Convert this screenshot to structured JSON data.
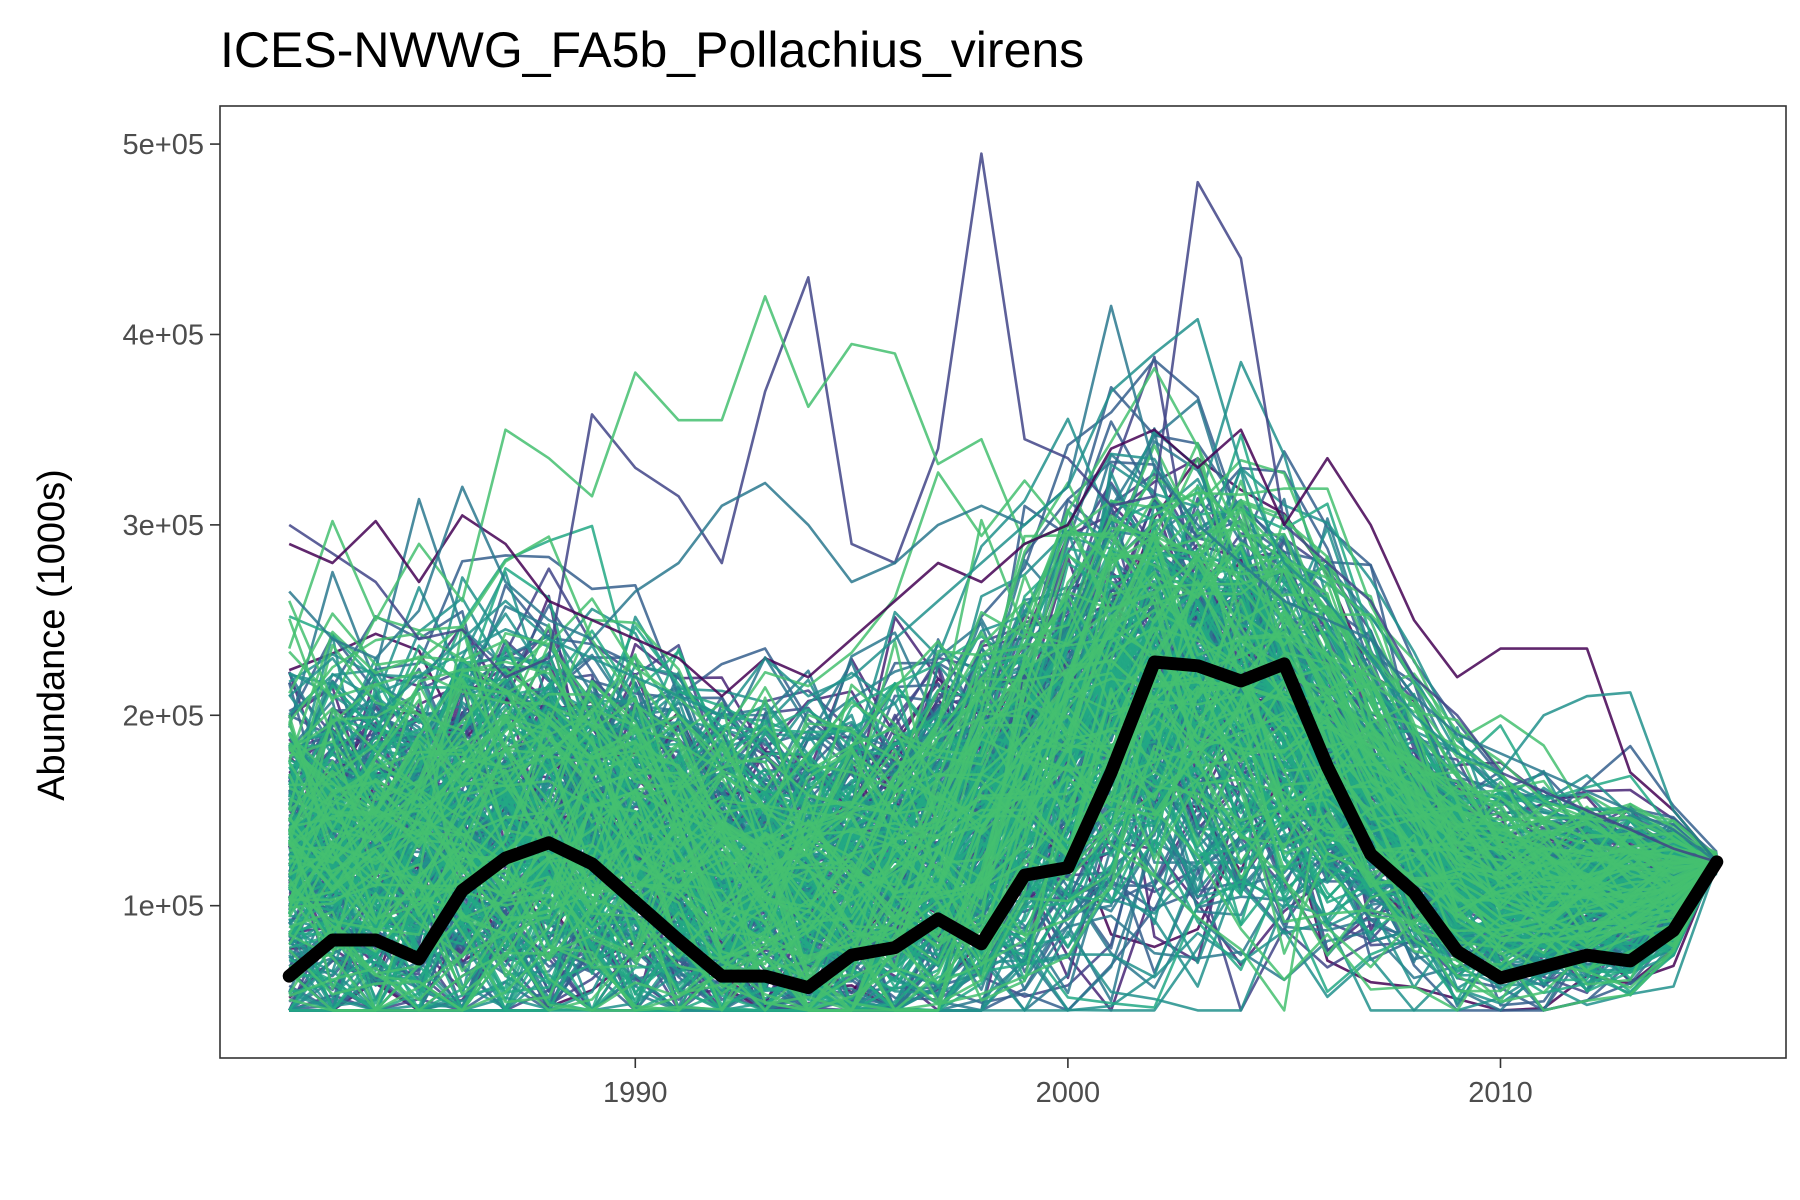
{
  "chart_data": {
    "type": "line",
    "title": "ICES-NWWG_FA5b_Pollachius_virens",
    "xlabel": "",
    "ylabel": "Abundance (1000s)",
    "xlim": [
      1980.4,
      2016.6
    ],
    "ylim": [
      20000,
      520000
    ],
    "x_ticks": [
      1990,
      2000,
      2010
    ],
    "x_tick_labels": [
      "1990",
      "2000",
      "2010"
    ],
    "y_ticks": [
      100000,
      200000,
      300000,
      400000,
      500000
    ],
    "y_tick_labels": [
      "1e+05",
      "2e+05",
      "3e+05",
      "4e+05",
      "5e+05"
    ],
    "grid": false,
    "legend": "none",
    "ensemble_palette": [
      "#440154",
      "#482475",
      "#414487",
      "#355f8d",
      "#2a788e",
      "#21918c",
      "#22a884",
      "#44bf70"
    ],
    "main_series": {
      "x": [
        1982,
        1983,
        1984,
        1985,
        1986,
        1987,
        1988,
        1989,
        1990,
        1991,
        1992,
        1993,
        1994,
        1995,
        1996,
        1997,
        1998,
        1999,
        2000,
        2001,
        2002,
        2003,
        2004,
        2005,
        2006,
        2007,
        2008,
        2009,
        2010,
        2011,
        2012,
        2013,
        2014,
        2015
      ],
      "values": [
        63000,
        82000,
        82000,
        72000,
        108000,
        125000,
        133000,
        122000,
        102000,
        82000,
        63000,
        63000,
        57000,
        74000,
        78000,
        93000,
        80000,
        116000,
        120000,
        170000,
        228000,
        226000,
        218000,
        227000,
        173000,
        127000,
        107000,
        76000,
        62000,
        68000,
        74000,
        71000,
        87000,
        123000
      ],
      "color": "#000000"
    },
    "ensemble_series": [
      {
        "x": [
          1982,
          1983,
          1984,
          1985,
          1986,
          1987,
          1988,
          1989,
          1990,
          1991,
          1992,
          1993,
          1994,
          1995,
          1996,
          1997,
          1998,
          1999,
          2000,
          2001,
          2002,
          2003,
          2004,
          2005,
          2006,
          2007,
          2008,
          2009,
          2010,
          2011,
          2012,
          2013,
          2014,
          2015
        ],
        "values": [
          300000,
          285000,
          270000,
          240000,
          245000,
          220000,
          230000,
          358000,
          330000,
          315000,
          280000,
          370000,
          430000,
          290000,
          280000,
          340000,
          495000,
          345000,
          335000,
          310000,
          315000,
          480000,
          440000,
          300000,
          280000,
          260000,
          220000,
          200000,
          170000,
          160000,
          150000,
          140000,
          130000,
          123000
        ],
        "color": "#414487"
      },
      {
        "x": [
          1982,
          1983,
          1984,
          1985,
          1986,
          1987,
          1988,
          1989,
          1990,
          1991,
          1992,
          1993,
          1994,
          1995,
          1996,
          1997,
          1998,
          1999,
          2000,
          2001,
          2002,
          2003,
          2004,
          2005,
          2006,
          2007,
          2008,
          2009,
          2010,
          2011,
          2012,
          2013,
          2014,
          2015
        ],
        "values": [
          235000,
          302000,
          250000,
          290000,
          260000,
          350000,
          335000,
          315000,
          380000,
          355000,
          355000,
          420000,
          362000,
          395000,
          390000,
          332000,
          345000,
          290000,
          300000,
          280000,
          300000,
          320000,
          300000,
          260000,
          230000,
          200000,
          170000,
          150000,
          140000,
          130000,
          125000,
          120000,
          118000,
          123000
        ],
        "color": "#44bf70"
      },
      {
        "x": [
          1982,
          1983,
          1984,
          1985,
          1986,
          1987,
          1988,
          1989,
          1990,
          1991,
          1992,
          1993,
          1994,
          1995,
          1996,
          1997,
          1998,
          1999,
          2000,
          2001,
          2002,
          2003,
          2004,
          2005,
          2006,
          2007,
          2008,
          2009,
          2010,
          2011,
          2012,
          2013,
          2014,
          2015
        ],
        "values": [
          290000,
          280000,
          302000,
          270000,
          305000,
          290000,
          260000,
          250000,
          240000,
          230000,
          210000,
          230000,
          220000,
          240000,
          260000,
          280000,
          270000,
          290000,
          300000,
          340000,
          350000,
          330000,
          350000,
          300000,
          335000,
          300000,
          250000,
          220000,
          235000,
          235000,
          235000,
          170000,
          150000,
          123000
        ],
        "color": "#440154"
      },
      {
        "x": [
          1982,
          1983,
          1984,
          1985,
          1986,
          1987,
          1988,
          1989,
          1990,
          1991,
          1992,
          1993,
          1994,
          1995,
          1996,
          1997,
          1998,
          1999,
          2000,
          2001,
          2002,
          2003,
          2004,
          2005,
          2006,
          2007,
          2008,
          2009,
          2010,
          2011,
          2012,
          2013,
          2014,
          2015
        ],
        "values": [
          265000,
          240000,
          230000,
          255000,
          320000,
          270000,
          250000,
          240000,
          265000,
          280000,
          310000,
          322000,
          300000,
          270000,
          280000,
          300000,
          310000,
          300000,
          320000,
          415000,
          330000,
          300000,
          280000,
          260000,
          250000,
          240000,
          210000,
          190000,
          180000,
          170000,
          160000,
          150000,
          140000,
          123000
        ],
        "color": "#2a788e"
      },
      {
        "x": [
          1982,
          1983,
          1984,
          1985,
          1986,
          1987,
          1988,
          1989,
          1990,
          1991,
          1992,
          1993,
          1994,
          1995,
          1996,
          1997,
          1998,
          1999,
          2000,
          2001,
          2002,
          2003,
          2004,
          2005,
          2006,
          2007,
          2008,
          2009,
          2010,
          2011,
          2012,
          2013,
          2014,
          2015
        ],
        "values": [
          210000,
          230000,
          200000,
          220000,
          240000,
          260000,
          240000,
          230000,
          220000,
          210000,
          200000,
          230000,
          210000,
          220000,
          240000,
          260000,
          280000,
          300000,
          320000,
          370000,
          390000,
          408000,
          330000,
          280000,
          260000,
          230000,
          200000,
          180000,
          170000,
          200000,
          210000,
          212000,
          150000,
          123000
        ],
        "color": "#21918c"
      }
    ],
    "ensemble_generated": {
      "count": 340,
      "envelope_x": [
        1982,
        1983,
        1984,
        1985,
        1986,
        1987,
        1988,
        1989,
        1990,
        1991,
        1992,
        1993,
        1994,
        1995,
        1996,
        1997,
        1998,
        1999,
        2000,
        2001,
        2002,
        2003,
        2004,
        2005,
        2006,
        2007,
        2008,
        2009,
        2010,
        2011,
        2012,
        2013,
        2014,
        2015
      ],
      "median": [
        125000,
        128000,
        130000,
        132000,
        138000,
        142000,
        145000,
        140000,
        135000,
        125000,
        115000,
        112000,
        110000,
        112000,
        118000,
        130000,
        145000,
        165000,
        185000,
        205000,
        215000,
        212000,
        205000,
        195000,
        180000,
        160000,
        140000,
        122000,
        112000,
        108000,
        108000,
        106000,
        108000,
        123000
      ],
      "spread": [
        55000,
        55000,
        55000,
        55000,
        57000,
        58000,
        58000,
        56000,
        54000,
        52000,
        50000,
        50000,
        50000,
        50000,
        52000,
        55000,
        58000,
        62000,
        65000,
        68000,
        68000,
        65000,
        62000,
        58000,
        52000,
        45000,
        38000,
        33000,
        30000,
        28000,
        27000,
        24000,
        18000,
        2000
      ],
      "floor": 45000
    }
  }
}
